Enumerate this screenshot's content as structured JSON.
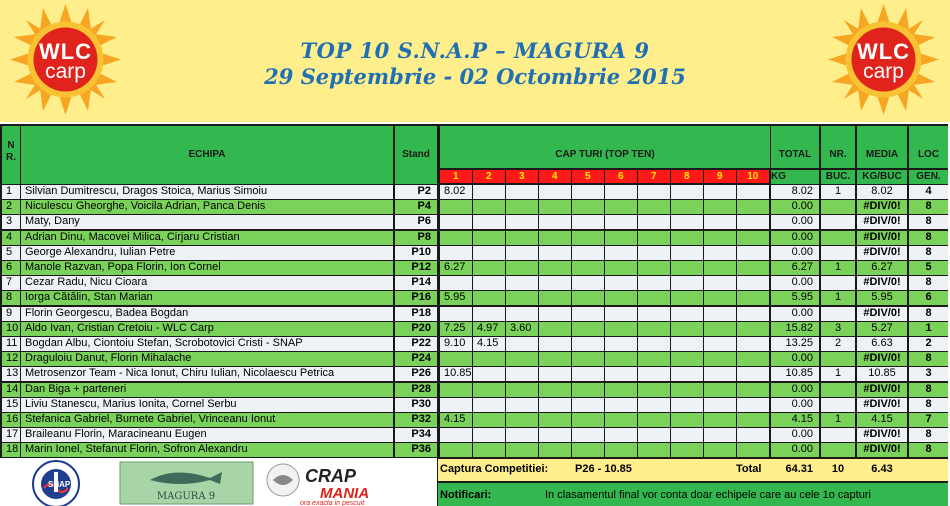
{
  "header": {
    "title": "TOP 10  S.N.A.P – MAGURA 9",
    "subtitle": "29 Septembrie - 02 Octombrie 2015",
    "logo_left": {
      "line1": "WLC",
      "line2": "carp"
    },
    "logo_right": {
      "line1": "WLC",
      "line2": "carp"
    }
  },
  "columns": {
    "nr": "N R.",
    "team": "ECHIPA",
    "stand": "Stand",
    "cap": "CAP TURI (TOP TEN)",
    "cap_numbers": [
      "1",
      "2",
      "3",
      "4",
      "5",
      "6",
      "7",
      "8",
      "9",
      "10"
    ],
    "total": "TOTAL",
    "total_unit": "KG",
    "count": "NR.",
    "count_unit": "BUC.",
    "avg": "MEDIA",
    "avg_unit": "KG/BUC",
    "rank": "LOC",
    "rank_unit": "GEN."
  },
  "rows": [
    {
      "nr": "1",
      "team": "Silvian Dumitrescu, Dragos Stoica, Marius Simoiu",
      "stand": "P2",
      "caps": [
        "8.02",
        "",
        "",
        "",
        "",
        "",
        "",
        "",
        "",
        ""
      ],
      "total": "8.02",
      "count": "1",
      "avg": "8.02",
      "rank": "4"
    },
    {
      "nr": "2",
      "team": "Niculescu Gheorghe, Voicila Adrian, Panca Denis",
      "stand": "P4",
      "caps": [
        "",
        "",
        "",
        "",
        "",
        "",
        "",
        "",
        "",
        ""
      ],
      "total": "0.00",
      "count": "",
      "avg": "#DIV/0!",
      "rank": "8"
    },
    {
      "nr": "3",
      "team": "Maty, Dany",
      "stand": "P6",
      "caps": [
        "",
        "",
        "",
        "",
        "",
        "",
        "",
        "",
        "",
        ""
      ],
      "total": "0.00",
      "count": "",
      "avg": "#DIV/0!",
      "rank": "8"
    },
    {
      "nr": "4",
      "team": "Adrian Dinu, Macovei Milica, Cirjaru Cristian",
      "stand": "P8",
      "caps": [
        "",
        "",
        "",
        "",
        "",
        "",
        "",
        "",
        "",
        ""
      ],
      "total": "0.00",
      "count": "",
      "avg": "#DIV/0!",
      "rank": "8"
    },
    {
      "nr": "5",
      "team": "George Alexandru, Iulian Petre",
      "stand": "P10",
      "caps": [
        "",
        "",
        "",
        "",
        "",
        "",
        "",
        "",
        "",
        ""
      ],
      "total": "0.00",
      "count": "",
      "avg": "#DIV/0!",
      "rank": "8"
    },
    {
      "nr": "6",
      "team": "Manole Razvan, Popa Florin, Ion Cornel",
      "stand": "P12",
      "caps": [
        "6.27",
        "",
        "",
        "",
        "",
        "",
        "",
        "",
        "",
        ""
      ],
      "total": "6.27",
      "count": "1",
      "avg": "6.27",
      "rank": "5"
    },
    {
      "nr": "7",
      "team": "Cezar Radu, Nicu Cioara",
      "stand": "P14",
      "caps": [
        "",
        "",
        "",
        "",
        "",
        "",
        "",
        "",
        "",
        ""
      ],
      "total": "0.00",
      "count": "",
      "avg": "#DIV/0!",
      "rank": "8"
    },
    {
      "nr": "8",
      "team": "Iorga Cătălin, Stan Marian",
      "stand": "P16",
      "caps": [
        "5.95",
        "",
        "",
        "",
        "",
        "",
        "",
        "",
        "",
        ""
      ],
      "total": "5.95",
      "count": "1",
      "avg": "5.95",
      "rank": "6"
    },
    {
      "nr": "9",
      "team": "Florin Georgescu, Badea Bogdan",
      "stand": "P18",
      "caps": [
        "",
        "",
        "",
        "",
        "",
        "",
        "",
        "",
        "",
        ""
      ],
      "total": "0.00",
      "count": "",
      "avg": "#DIV/0!",
      "rank": "8"
    },
    {
      "nr": "10",
      "team": "Aldo  Ivan,  Cristian  Cretoiu - WLC Carp",
      "stand": "P20",
      "caps": [
        "7.25",
        "4.97",
        "3.60",
        "",
        "",
        "",
        "",
        "",
        "",
        ""
      ],
      "total": "15.82",
      "count": "3",
      "avg": "5.27",
      "rank": "1"
    },
    {
      "nr": "11",
      "team": "Bogdan Albu,  Ciontoiu Stefan, Scrobotovici Cristi - SNAP",
      "stand": "P22",
      "caps": [
        "9.10",
        "4.15",
        "",
        "",
        "",
        "",
        "",
        "",
        "",
        ""
      ],
      "total": "13.25",
      "count": "2",
      "avg": "6.63",
      "rank": "2"
    },
    {
      "nr": "12",
      "team": "Draguloiu Danut,  Florin Mihalache",
      "stand": "P24",
      "caps": [
        "",
        "",
        "",
        "",
        "",
        "",
        "",
        "",
        "",
        ""
      ],
      "total": "0.00",
      "count": "",
      "avg": "#DIV/0!",
      "rank": "8"
    },
    {
      "nr": "13",
      "team": "Metrosenzor Team - Nica Ionut, Chiru Iulian, Nicolaescu Petrica",
      "stand": "P26",
      "caps": [
        "10.85",
        "",
        "",
        "",
        "",
        "",
        "",
        "",
        "",
        ""
      ],
      "total": "10.85",
      "count": "1",
      "avg": "10.85",
      "rank": "3"
    },
    {
      "nr": "14",
      "team": "Dan Biga + parteneri",
      "stand": "P28",
      "caps": [
        "",
        "",
        "",
        "",
        "",
        "",
        "",
        "",
        "",
        ""
      ],
      "total": "0.00",
      "count": "",
      "avg": "#DIV/0!",
      "rank": "8"
    },
    {
      "nr": "15",
      "team": "Liviu Stanescu, Marius Ionita, Cornel Serbu",
      "stand": "P30",
      "caps": [
        "",
        "",
        "",
        "",
        "",
        "",
        "",
        "",
        "",
        ""
      ],
      "total": "0.00",
      "count": "",
      "avg": "#DIV/0!",
      "rank": "8"
    },
    {
      "nr": "16",
      "team": "Stefanica Gabriel, Burnete Gabriel, Vrinceanu Ionut",
      "stand": "P32",
      "caps": [
        "4.15",
        "",
        "",
        "",
        "",
        "",
        "",
        "",
        "",
        ""
      ],
      "total": "4.15",
      "count": "1",
      "avg": "4.15",
      "rank": "7"
    },
    {
      "nr": "17",
      "team": "Braileanu Florin, Maracineanu Eugen",
      "stand": "P34",
      "caps": [
        "",
        "",
        "",
        "",
        "",
        "",
        "",
        "",
        "",
        ""
      ],
      "total": "0.00",
      "count": "",
      "avg": "#DIV/0!",
      "rank": "8"
    },
    {
      "nr": "18",
      "team": "Marin Ionel, Stefanut Florin, Sofron Alexandru",
      "stand": "P36",
      "caps": [
        "",
        "",
        "",
        "",
        "",
        "",
        "",
        "",
        "",
        ""
      ],
      "total": "0.00",
      "count": "",
      "avg": "#DIV/0!",
      "rank": "8"
    }
  ],
  "footer": {
    "capture_label": "Captura Competitiei:",
    "capture_value": "P26 - 10.85",
    "total_label": "Total",
    "total_kg": "64.31",
    "total_count": "10",
    "total_avg": "6.43",
    "notes_label": "Notificari:",
    "notes_text": "In clasamentul final vor conta doar echipele care au cele 1o capturi"
  },
  "sponsors": {
    "snap_ring": "ASOCIATIA NATIONALA A PESCARILOR SPORTIVI",
    "snap_abbr": "SNAP",
    "magura": "MAGURA 9",
    "crap_line1": "CRAP",
    "crap_line2": "MANIA",
    "crap_tagline": "ora exacta in pescuit"
  },
  "colors": {
    "header_bg": "#ffee8c",
    "title": "#1f6fb4",
    "header_cell": "#33b84f",
    "row_green": "#7ad25a",
    "row_white": "#eef2f6",
    "cap_header": "#ff1a1a",
    "logo_red": "#e0231c",
    "logo_sun": "#f6a623"
  }
}
